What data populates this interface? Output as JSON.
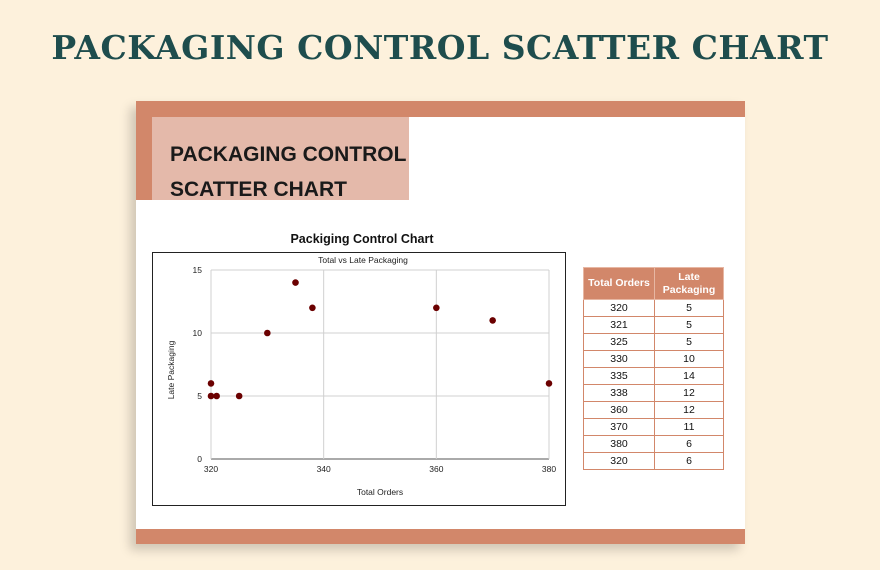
{
  "page": {
    "title": "PACKAGING CONTROL SCATTER CHART"
  },
  "sheet": {
    "heading_line1": "PACKAGING CONTROL",
    "heading_line2": "SCATTER CHART"
  },
  "colors": {
    "accent": "#d2876a",
    "heading_box": "#e4b9aa",
    "title_teal": "#1e4d4d",
    "background": "#fdf1dc",
    "point": "#6b0000"
  },
  "chart_data": {
    "type": "scatter",
    "title": "Packiging Control Chart",
    "subtitle": "Total vs Late Packaging",
    "xlabel": "Total Orders",
    "ylabel": "Late Packaging",
    "xlim": [
      320,
      380
    ],
    "ylim": [
      0,
      15
    ],
    "x_ticks": [
      320,
      340,
      360,
      380
    ],
    "y_ticks": [
      0,
      5,
      10,
      15
    ],
    "grid": true,
    "legend": "none",
    "points": [
      {
        "x": 320,
        "y": 5
      },
      {
        "x": 321,
        "y": 5
      },
      {
        "x": 325,
        "y": 5
      },
      {
        "x": 330,
        "y": 10
      },
      {
        "x": 335,
        "y": 14
      },
      {
        "x": 338,
        "y": 12
      },
      {
        "x": 360,
        "y": 12
      },
      {
        "x": 370,
        "y": 11
      },
      {
        "x": 380,
        "y": 6
      },
      {
        "x": 320,
        "y": 6
      }
    ]
  },
  "table": {
    "headers": [
      "Total Orders",
      "Late Packaging"
    ],
    "rows": [
      [
        "320",
        "5"
      ],
      [
        "321",
        "5"
      ],
      [
        "325",
        "5"
      ],
      [
        "330",
        "10"
      ],
      [
        "335",
        "14"
      ],
      [
        "338",
        "12"
      ],
      [
        "360",
        "12"
      ],
      [
        "370",
        "11"
      ],
      [
        "380",
        "6"
      ],
      [
        "320",
        "6"
      ]
    ]
  }
}
